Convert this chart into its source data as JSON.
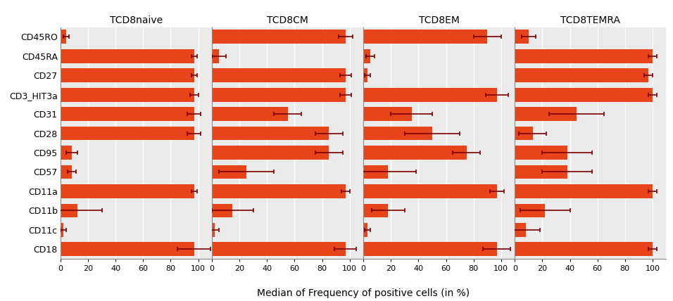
{
  "categories": [
    "CD45RO",
    "CD45RA",
    "CD27",
    "CD3_HIT3a",
    "CD31",
    "CD28",
    "CD95",
    "CD57",
    "CD11a",
    "CD11b",
    "CD11c",
    "CD18"
  ],
  "panels": [
    "TCD8naive",
    "TCD8CM",
    "TCD8EM",
    "TCD8TEMRA"
  ],
  "bar_color": "#E8441A",
  "error_color": "#7B0000",
  "background_color": "#EBEBEB",
  "grid_color": "#FFFFFF",
  "xlabel": "Median of Frequency of positive cells (in %)",
  "xticks": [
    0,
    20,
    40,
    60,
    80,
    100
  ],
  "data": {
    "TCD8naive": {
      "medians": [
        4,
        97,
        97,
        97,
        97,
        97,
        8,
        8,
        97,
        12,
        2,
        97
      ],
      "errors": [
        2,
        2,
        2,
        3,
        5,
        5,
        4,
        3,
        2,
        18,
        2,
        12
      ]
    },
    "TCD8CM": {
      "medians": [
        97,
        5,
        97,
        97,
        55,
        85,
        85,
        25,
        97,
        15,
        2,
        97
      ],
      "errors": [
        5,
        5,
        4,
        4,
        10,
        10,
        10,
        20,
        3,
        15,
        3,
        8
      ]
    },
    "TCD8EM": {
      "medians": [
        90,
        5,
        3,
        97,
        35,
        50,
        75,
        18,
        97,
        18,
        3,
        97
      ],
      "errors": [
        10,
        3,
        2,
        8,
        15,
        20,
        10,
        20,
        5,
        12,
        2,
        10
      ]
    },
    "TCD8TEMRA": {
      "medians": [
        10,
        100,
        97,
        100,
        45,
        13,
        38,
        38,
        100,
        22,
        8,
        100
      ],
      "errors": [
        5,
        3,
        3,
        3,
        20,
        10,
        18,
        18,
        3,
        18,
        10,
        3
      ]
    }
  }
}
